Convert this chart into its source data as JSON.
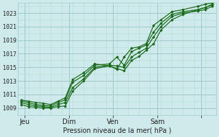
{
  "background_color": "#ceeaea",
  "grid_color_minor": "#b8d8d8",
  "grid_color_major": "#9ec8c8",
  "line_color": "#1a6b1a",
  "marker_color": "#1a6b1a",
  "xlabel": "Pression niveau de la mer( hPa )",
  "ylabel_ticks": [
    1009,
    1011,
    1013,
    1015,
    1017,
    1019,
    1021,
    1023
  ],
  "ylim": [
    1008.0,
    1024.5
  ],
  "xlim": [
    0,
    108
  ],
  "xtick_positions": [
    4,
    28,
    52,
    76,
    100
  ],
  "xtick_labels": [
    "Jeu",
    "Dim",
    "Ven",
    "Sam",
    ""
  ],
  "vline_positions": [
    2,
    26,
    50,
    74,
    98
  ],
  "lines": [
    {
      "x": [
        2,
        6,
        10,
        14,
        18,
        22,
        26,
        30,
        36,
        42,
        50,
        54,
        58,
        62,
        66,
        70,
        74,
        78,
        84,
        90,
        98,
        102,
        106
      ],
      "y": [
        1009.5,
        1009.2,
        1009.1,
        1009.0,
        1009.0,
        1009.2,
        1009.3,
        1011.5,
        1013.0,
        1014.8,
        1015.2,
        1014.8,
        1014.5,
        1016.0,
        1016.6,
        1017.5,
        1018.5,
        1020.5,
        1022.0,
        1022.8,
        1023.5,
        1023.8,
        1024.2
      ]
    },
    {
      "x": [
        2,
        6,
        10,
        14,
        18,
        22,
        26,
        30,
        36,
        42,
        50,
        54,
        58,
        62,
        66,
        70,
        74,
        78,
        84,
        90,
        98,
        102,
        106
      ],
      "y": [
        1009.8,
        1009.5,
        1009.3,
        1009.2,
        1009.1,
        1009.5,
        1009.8,
        1012.0,
        1013.3,
        1015.0,
        1015.3,
        1015.2,
        1015.0,
        1016.5,
        1017.2,
        1017.8,
        1019.5,
        1021.0,
        1022.5,
        1023.0,
        1023.3,
        1023.5,
        1024.0
      ]
    },
    {
      "x": [
        2,
        6,
        10,
        14,
        18,
        22,
        26,
        30,
        36,
        42,
        50,
        54,
        58,
        62,
        66,
        70,
        74,
        78,
        84,
        90,
        98,
        102,
        106
      ],
      "y": [
        1010.0,
        1009.8,
        1009.5,
        1009.4,
        1009.3,
        1009.8,
        1010.2,
        1012.8,
        1013.8,
        1015.3,
        1015.5,
        1016.5,
        1015.3,
        1017.3,
        1017.8,
        1018.3,
        1020.2,
        1021.5,
        1022.8,
        1023.2,
        1023.5,
        1023.8,
        1024.3
      ]
    },
    {
      "x": [
        2,
        6,
        10,
        14,
        18,
        22,
        26,
        30,
        36,
        42,
        50,
        54,
        58,
        62,
        66,
        70,
        74,
        78,
        84,
        90,
        98,
        102,
        106
      ],
      "y": [
        1010.2,
        1010.0,
        1009.8,
        1009.7,
        1009.5,
        1010.0,
        1010.5,
        1013.2,
        1014.2,
        1015.5,
        1015.2,
        1014.7,
        1016.5,
        1017.8,
        1018.0,
        1018.5,
        1021.2,
        1022.0,
        1023.2,
        1023.5,
        1024.0,
        1024.3,
        1024.5
      ]
    }
  ]
}
